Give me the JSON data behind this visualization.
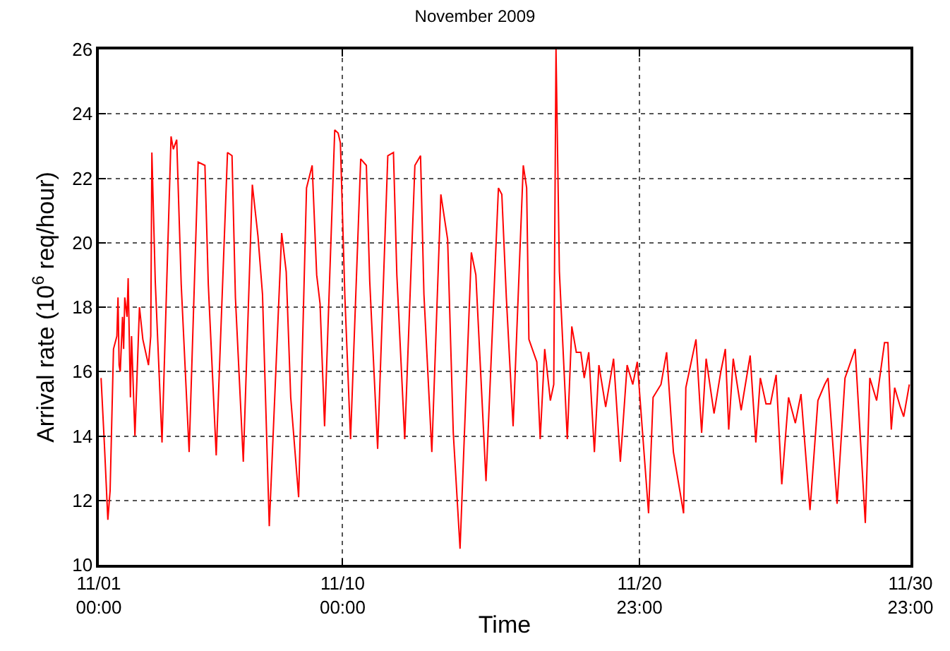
{
  "chart_data": {
    "type": "line",
    "title": "November 2009",
    "xlabel": "Time",
    "ylabel": "Arrival rate (10$^{6}$ req/hour)",
    "x": [
      "2009-11-01T02:00",
      "2009-11-01T05:00",
      "2009-11-01T08:00",
      "2009-11-01T10:00",
      "2009-11-01T13:00",
      "2009-11-01T16:00",
      "2009-11-01T17:00",
      "2009-11-01T18:00",
      "2009-11-01T19:00",
      "2009-11-01T21:00",
      "2009-11-01T22:00",
      "2009-11-01T23:00",
      "2009-11-02T01:00",
      "2009-11-02T02:00",
      "2009-11-02T04:00",
      "2009-11-02T05:00",
      "2009-11-02T08:00",
      "2009-11-02T12:00",
      "2009-11-02T15:00",
      "2009-11-02T20:00",
      "2009-11-02T22:00",
      "2009-11-02T23:00",
      "2009-11-03T02:00",
      "2009-11-03T08:00",
      "2009-11-03T16:00",
      "2009-11-03T18:00",
      "2009-11-03T21:00",
      "2009-11-04T01:00",
      "2009-11-04T08:00",
      "2009-11-04T16:00",
      "2009-11-04T22:00",
      "2009-11-05T01:00",
      "2009-11-05T08:00",
      "2009-11-05T18:00",
      "2009-11-05T22:00",
      "2009-11-06T01:00",
      "2009-11-06T08:00",
      "2009-11-06T16:00",
      "2009-11-06T21:00",
      "2009-11-07T01:00",
      "2009-11-07T07:00",
      "2009-11-07T18:00",
      "2009-11-07T22:00",
      "2009-11-08T02:00",
      "2009-11-08T09:00",
      "2009-11-08T16:00",
      "2009-11-08T21:00",
      "2009-11-09T01:00",
      "2009-11-09T04:00",
      "2009-11-09T08:00",
      "2009-11-09T17:00",
      "2009-11-09T20:00",
      "2009-11-09T22:00",
      "2009-11-10T02:00",
      "2009-11-10T07:00",
      "2009-11-10T16:00",
      "2009-11-10T21:00",
      "2009-11-11T00:00",
      "2009-11-11T07:00",
      "2009-11-11T16:00",
      "2009-11-11T21:00",
      "2009-11-12T00:00",
      "2009-11-12T07:00",
      "2009-11-12T16:00",
      "2009-11-12T21:00",
      "2009-11-13T00:00",
      "2009-11-13T07:00",
      "2009-11-13T15:00",
      "2009-11-13T21:00",
      "2009-11-14T02:00",
      "2009-11-14T08:00",
      "2009-11-14T18:00",
      "2009-11-14T22:00",
      "2009-11-15T07:00",
      "2009-11-15T18:00",
      "2009-11-15T21:00",
      "2009-11-16T01:00",
      "2009-11-16T07:00",
      "2009-11-16T16:00",
      "2009-11-16T19:00",
      "2009-11-16T21:00",
      "2009-11-17T04:00",
      "2009-11-17T07:00",
      "2009-11-17T11:00",
      "2009-11-17T16:00",
      "2009-11-17T19:00",
      "2009-11-17T21:00",
      "2009-11-18T00:00",
      "2009-11-18T07:00",
      "2009-11-18T11:00",
      "2009-11-18T15:00",
      "2009-11-18T19:00",
      "2009-11-18T22:00",
      "2009-11-19T02:00",
      "2009-11-19T07:00",
      "2009-11-19T11:00",
      "2009-11-19T17:00",
      "2009-11-20T00:00",
      "2009-11-20T06:00",
      "2009-11-20T12:00",
      "2009-11-20T17:00",
      "2009-11-20T21:00",
      "2009-11-21T07:00",
      "2009-11-21T11:00",
      "2009-11-21T18:00",
      "2009-11-21T23:00",
      "2009-11-22T05:00",
      "2009-11-22T14:00",
      "2009-11-22T16:00",
      "2009-11-23T01:00",
      "2009-11-23T06:00",
      "2009-11-23T10:00",
      "2009-11-23T17:00",
      "2009-11-23T23:00",
      "2009-11-24T03:00",
      "2009-11-24T06:00",
      "2009-11-24T10:00",
      "2009-11-24T17:00",
      "2009-11-25T01:00",
      "2009-11-25T06:00",
      "2009-11-25T10:00",
      "2009-11-25T15:00",
      "2009-11-25T19:00",
      "2009-11-26T00:00",
      "2009-11-26T05:00",
      "2009-11-26T11:00",
      "2009-11-26T17:00",
      "2009-11-26T22:00",
      "2009-11-27T06:00",
      "2009-11-27T13:00",
      "2009-11-27T19:00",
      "2009-11-27T22:00",
      "2009-11-28T06:00",
      "2009-11-28T13:00",
      "2009-11-28T22:00",
      "2009-11-29T07:00",
      "2009-11-29T11:00",
      "2009-11-29T17:00",
      "2009-11-30T00:00",
      "2009-11-30T03:00",
      "2009-11-30T06:00",
      "2009-11-30T09:00",
      "2009-11-30T14:00",
      "2009-11-30T17:00",
      "2009-11-30T22:00"
    ],
    "series": [
      {
        "color": "#ff0000",
        "values": [
          15.8,
          13.7,
          11.4,
          12.3,
          16.7,
          17.1,
          18.3,
          16.2,
          16.0,
          17.7,
          16.7,
          18.3,
          17.7,
          18.9,
          15.2,
          17.1,
          14.0,
          18.0,
          17.0,
          16.2,
          17.1,
          22.8,
          18.8,
          13.8,
          23.3,
          22.9,
          23.2,
          18.7,
          13.5,
          22.5,
          22.4,
          18.7,
          13.4,
          22.8,
          22.7,
          18.3,
          13.2,
          21.8,
          20.2,
          18.4,
          11.2,
          20.3,
          19.1,
          15.2,
          12.1,
          21.7,
          22.4,
          19.0,
          18.1,
          14.3,
          23.5,
          23.4,
          23.1,
          18.3,
          13.9,
          22.6,
          22.4,
          18.8,
          13.6,
          22.7,
          22.8,
          19.0,
          13.9,
          22.4,
          22.7,
          18.4,
          13.5,
          21.5,
          20.1,
          14.1,
          10.5,
          19.7,
          19.0,
          12.6,
          21.7,
          21.5,
          18.3,
          14.3,
          22.4,
          21.7,
          17.0,
          16.3,
          13.9,
          16.7,
          15.1,
          15.6,
          26.0,
          19.1,
          13.9,
          17.4,
          16.6,
          16.6,
          15.8,
          16.6,
          13.5,
          16.2,
          14.9,
          16.4,
          13.2,
          16.2,
          15.6,
          16.3,
          11.6,
          15.2,
          15.6,
          16.6,
          13.5,
          11.6,
          15.5,
          17.0,
          14.1,
          16.4,
          14.7,
          16.0,
          16.7,
          14.2,
          16.4,
          14.8,
          16.5,
          13.8,
          15.8,
          15.0,
          15.0,
          15.9,
          12.5,
          15.2,
          14.4,
          15.3,
          11.7,
          15.1,
          15.6,
          15.8,
          11.9,
          15.8,
          16.7,
          11.3,
          15.8,
          15.1,
          16.9,
          16.9,
          14.2,
          15.5,
          14.9,
          14.6,
          15.6
        ]
      }
    ],
    "xlim": [
      "2009-11-01T00:00",
      "2009-11-30T23:00"
    ],
    "xticks": [
      {
        "value": "2009-11-01T00:00",
        "label": "11/01\n00:00"
      },
      {
        "value": "2009-11-10T00:00",
        "label": "11/10\n00:00"
      },
      {
        "value": "2009-11-20T23:00",
        "label": "11/20\n23:00"
      },
      {
        "value": "2009-11-30T23:00",
        "label": "11/30\n23:00"
      }
    ],
    "ylim": [
      10,
      26
    ],
    "yticks": [
      10,
      12,
      14,
      16,
      18,
      20,
      22,
      24,
      26
    ],
    "grid": true,
    "marker": "none",
    "line_style": "solid"
  }
}
